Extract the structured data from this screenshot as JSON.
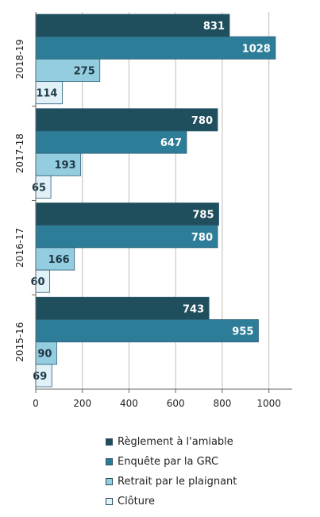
{
  "chart_data": {
    "type": "bar",
    "orientation": "horizontal",
    "categories": [
      "2018-19",
      "2017-18",
      "2016-17",
      "2015-16"
    ],
    "series": [
      {
        "name": "Règlement à l'amiable",
        "values": [
          831,
          780,
          785,
          743
        ],
        "color": "#1f4e5c",
        "label_color": "#ffffff"
      },
      {
        "name": "Enquête par la GRC",
        "values": [
          1028,
          647,
          780,
          955
        ],
        "color": "#2e7d98",
        "label_color": "#ffffff"
      },
      {
        "name": "Retrait par le plaignant",
        "values": [
          275,
          193,
          166,
          90
        ],
        "color": "#95cde0",
        "label_color": "#1f3a46"
      },
      {
        "name": "Clôture",
        "values": [
          114,
          65,
          60,
          69
        ],
        "color": "#e1f1f8",
        "label_color": "#1f3a46"
      }
    ],
    "xlim": [
      0,
      1100
    ],
    "xticks": [
      0,
      200,
      400,
      600,
      800,
      1000
    ],
    "grid": true,
    "legend_position": "bottom"
  }
}
